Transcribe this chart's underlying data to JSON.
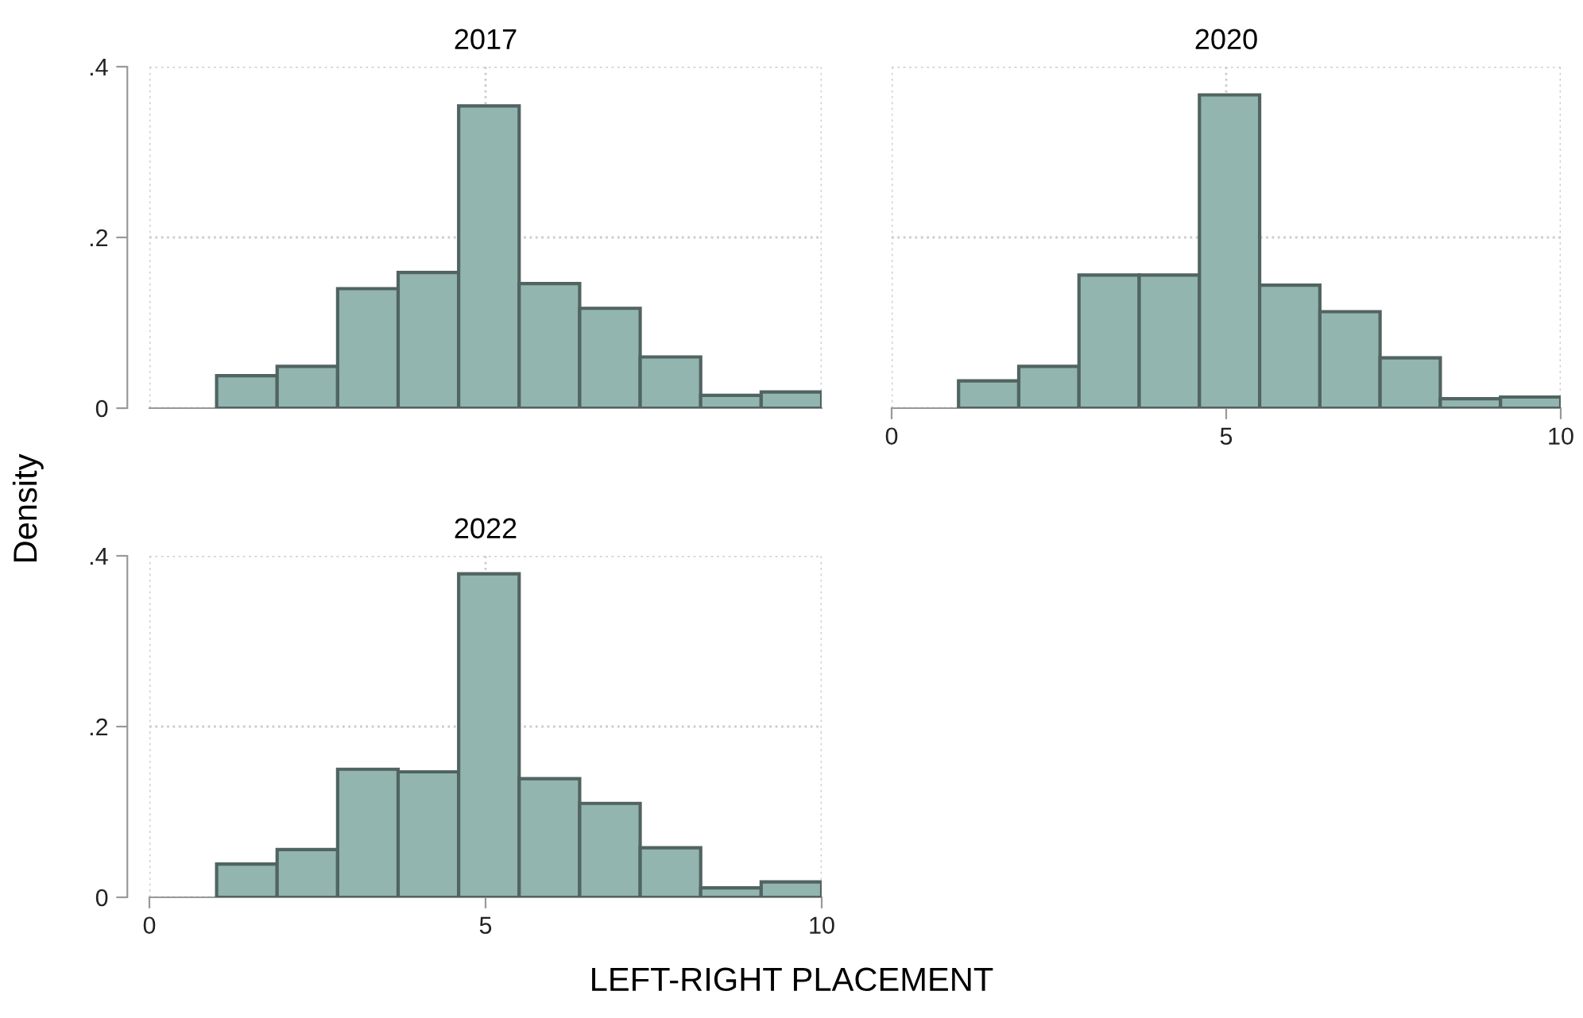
{
  "chart_data": [
    {
      "type": "histogram",
      "title": "2017",
      "bins": [
        1,
        1.9,
        2.8,
        3.7,
        4.6,
        5.5,
        6.4,
        7.3,
        8.2,
        9.1,
        10
      ],
      "values": [
        0.038,
        0.049,
        0.14,
        0.159,
        0.354,
        0.146,
        0.117,
        0.06,
        0.015,
        0.019
      ],
      "color": "#93b5b0",
      "xlim": [
        0,
        10
      ],
      "xticks": [
        0,
        5,
        10
      ],
      "ylim": [
        0,
        0.4
      ],
      "yticks": [
        0,
        {
          "value": 0.2,
          "label": ".2"
        },
        {
          "value": 0.4,
          "label": ".4"
        }
      ],
      "grid": true,
      "tick_labels": "y"
    },
    {
      "type": "histogram",
      "title": "2020",
      "bins": [
        1,
        1.9,
        2.8,
        3.7,
        4.6,
        5.5,
        6.4,
        7.3,
        8.2,
        9.1,
        10
      ],
      "values": [
        0.032,
        0.049,
        0.156,
        0.156,
        0.367,
        0.144,
        0.113,
        0.059,
        0.011,
        0.013
      ],
      "color": "#93b5b0",
      "xlim": [
        0,
        10
      ],
      "xticks": [
        0,
        5,
        10
      ],
      "ylim": [
        0,
        0.4
      ],
      "yticks": [
        {
          "value": 0,
          "label": null
        },
        {
          "value": 0.2,
          "label": null
        },
        {
          "value": 0.4,
          "label": null
        }
      ],
      "grid": true,
      "tick_labels": "x"
    },
    {
      "type": "histogram",
      "title": "2022",
      "xlabel": "LEFT-RIGHT PLACEMENT",
      "ylabel": "Density",
      "bins": [
        1,
        1.9,
        2.8,
        3.7,
        4.6,
        5.5,
        6.4,
        7.3,
        8.2,
        9.1,
        10
      ],
      "values": [
        0.039,
        0.056,
        0.15,
        0.147,
        0.379,
        0.139,
        0.11,
        0.058,
        0.011,
        0.018
      ],
      "color": "#93b5b0",
      "xlim": [
        0,
        10
      ],
      "xticks": [
        0,
        5,
        10
      ],
      "ylim": [
        0,
        0.4
      ],
      "yticks": [
        0,
        {
          "value": 0.2,
          "label": ".2"
        },
        {
          "value": 0.4,
          "label": ".4"
        }
      ],
      "grid": true
    }
  ]
}
